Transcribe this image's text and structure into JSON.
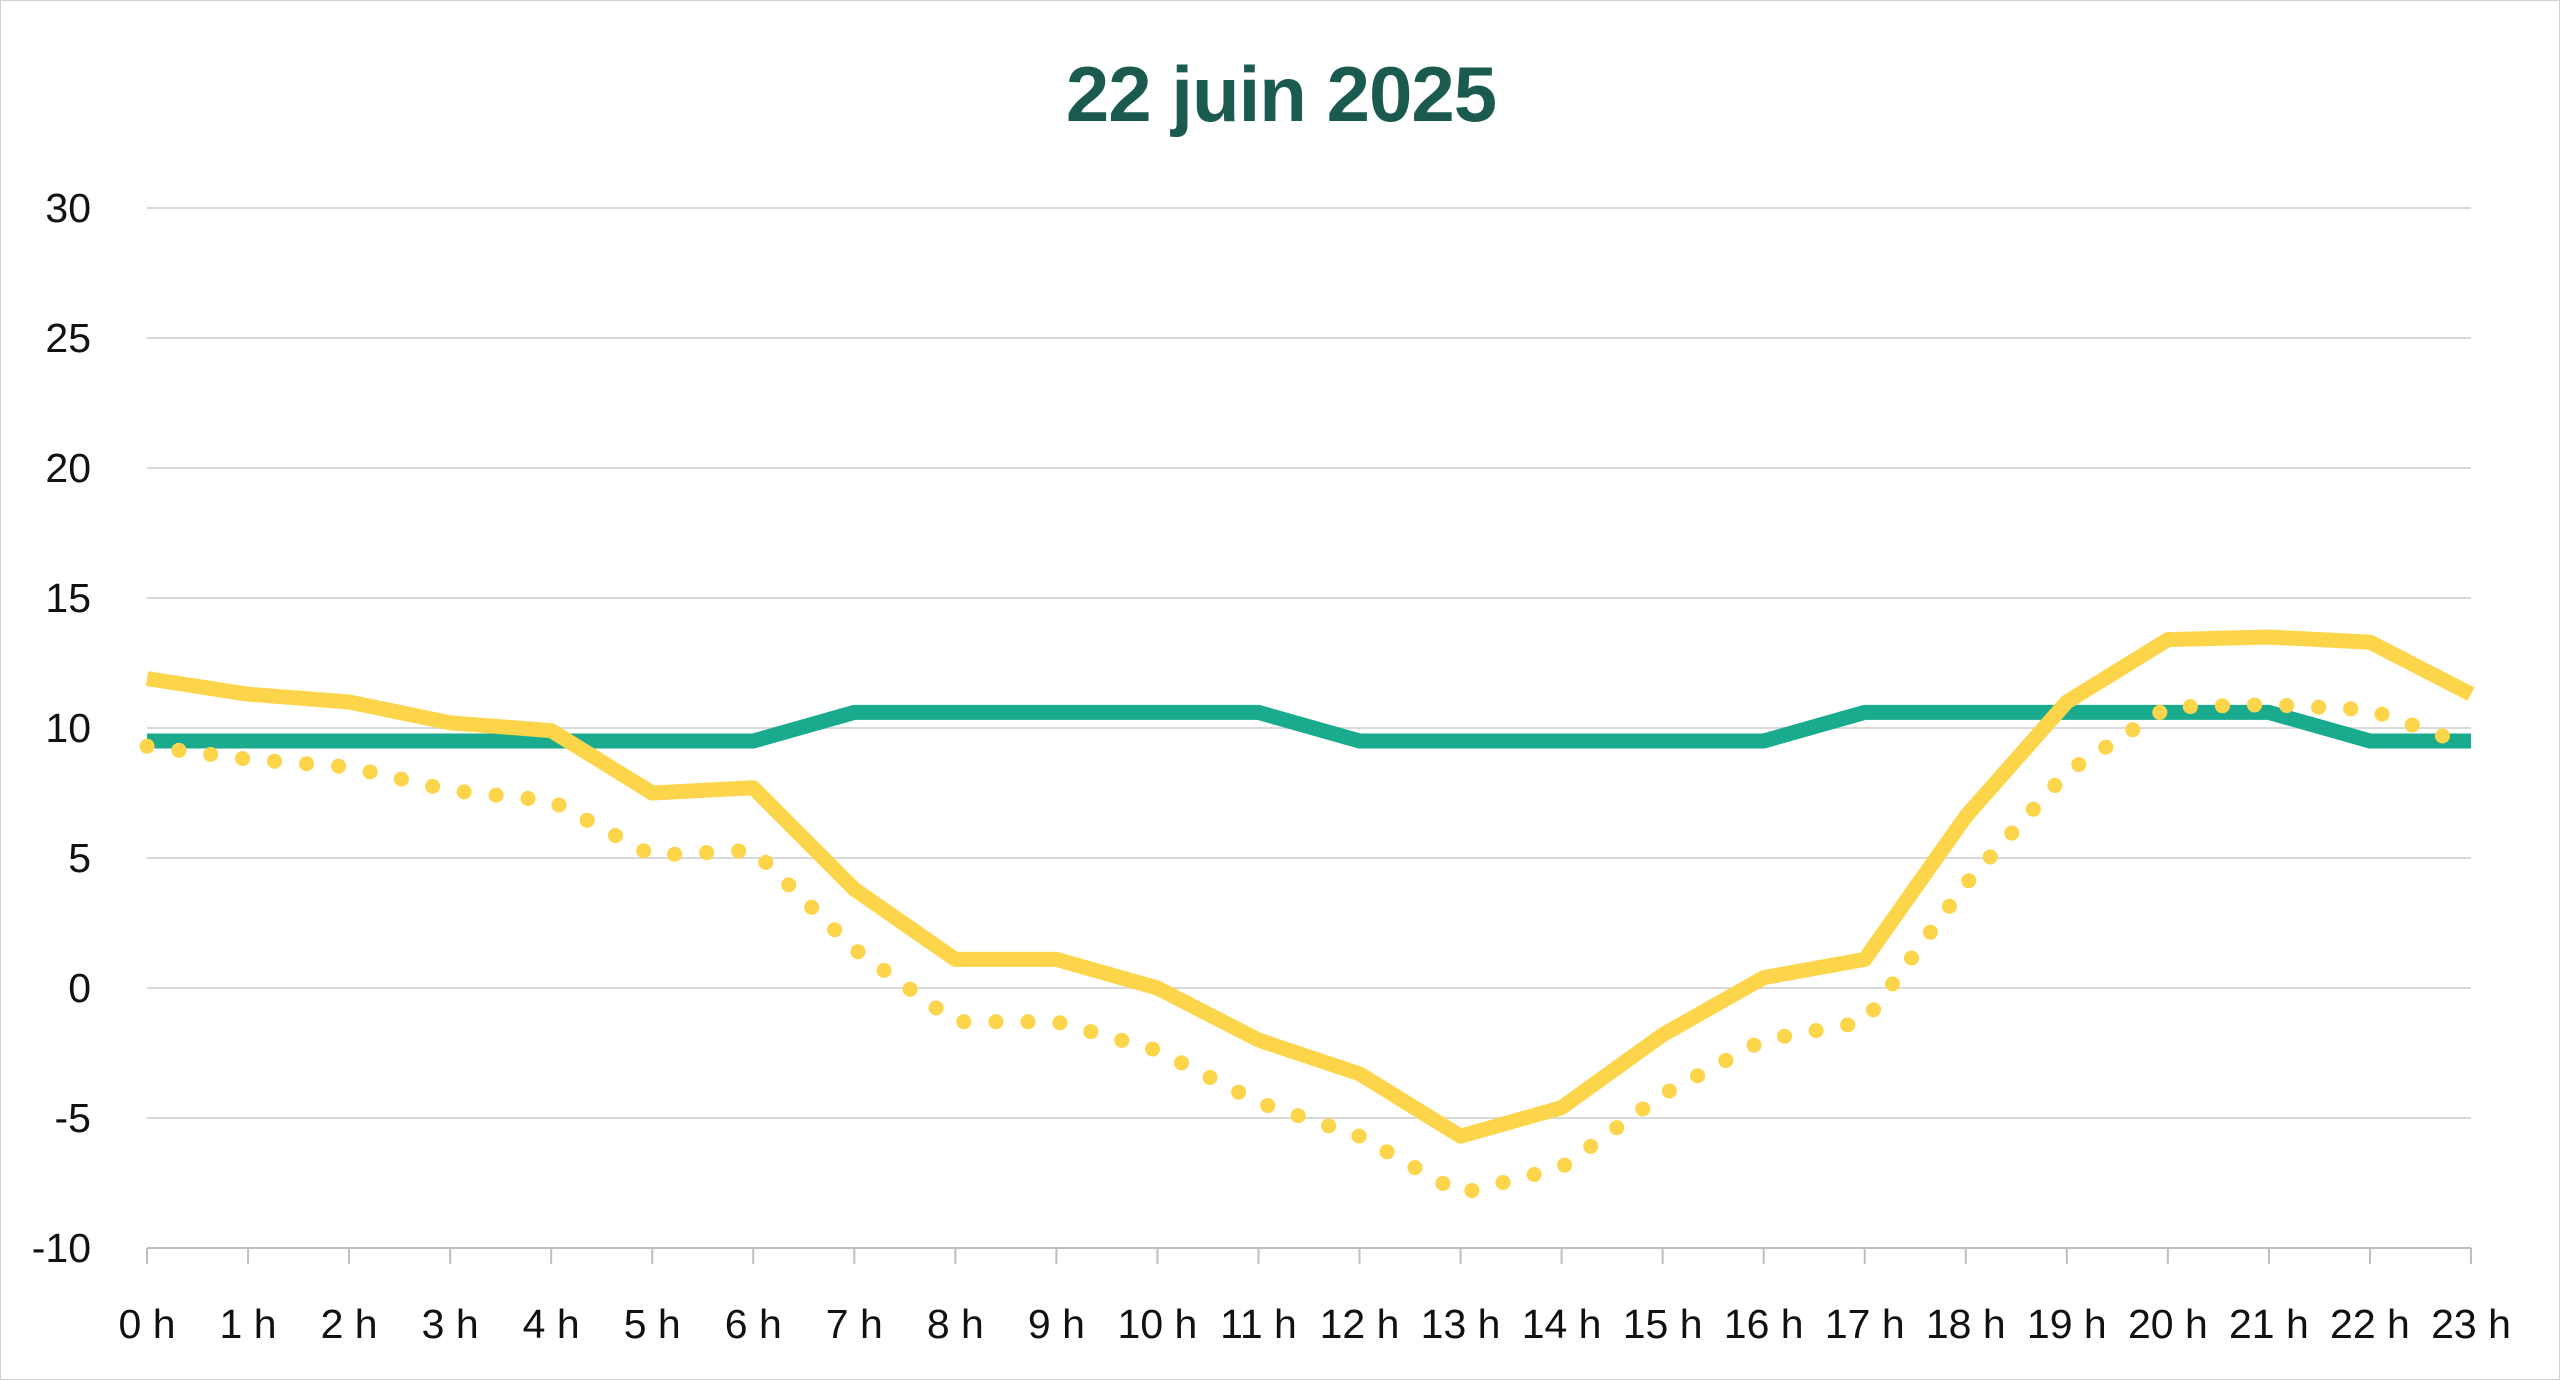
{
  "chart_data": {
    "type": "line",
    "title": "22 juin 2025",
    "xlabel": "",
    "ylabel": "",
    "categories": [
      "0 h",
      "1 h",
      "2 h",
      "3 h",
      "4 h",
      "5 h",
      "6 h",
      "7 h",
      "8 h",
      "9 h",
      "10 h",
      "11 h",
      "12 h",
      "13 h",
      "14 h",
      "15 h",
      "16 h",
      "17 h",
      "18 h",
      "19 h",
      "20 h",
      "21 h",
      "22 h",
      "23 h"
    ],
    "ylim": [
      -10,
      30
    ],
    "yticks": [
      "30",
      "25",
      "20",
      "15",
      "10",
      "5",
      "0",
      "-5",
      "-10"
    ],
    "grid": true,
    "legend": "none",
    "series": [
      {
        "style": "solid",
        "color": "#1aaa8e",
        "values": [
          9.5,
          9.5,
          9.5,
          9.5,
          9.5,
          9.5,
          9.5,
          10.6,
          10.6,
          10.6,
          10.6,
          10.6,
          9.5,
          9.5,
          9.5,
          9.5,
          9.5,
          10.6,
          10.6,
          10.6,
          10.6,
          10.6,
          9.5,
          9.5
        ]
      },
      {
        "style": "solid",
        "color": "#fcd54a",
        "values": [
          11.9,
          11.3,
          11.0,
          10.2,
          9.9,
          7.5,
          7.7,
          3.8,
          1.1,
          1.1,
          0.0,
          -2.0,
          -3.3,
          -5.7,
          -4.6,
          -1.8,
          0.4,
          1.1,
          6.6,
          11.0,
          13.4,
          13.5,
          13.3,
          11.3
        ]
      },
      {
        "style": "dotted",
        "color": "#fcd54a",
        "values": [
          9.3,
          8.8,
          8.5,
          7.6,
          7.2,
          5.1,
          5.3,
          1.5,
          -1.3,
          -1.3,
          -2.4,
          -4.4,
          -5.7,
          -7.9,
          -6.9,
          -4.1,
          -2.0,
          -1.3,
          4.0,
          8.3,
          10.8,
          10.9,
          10.7,
          9.3
        ]
      }
    ]
  }
}
